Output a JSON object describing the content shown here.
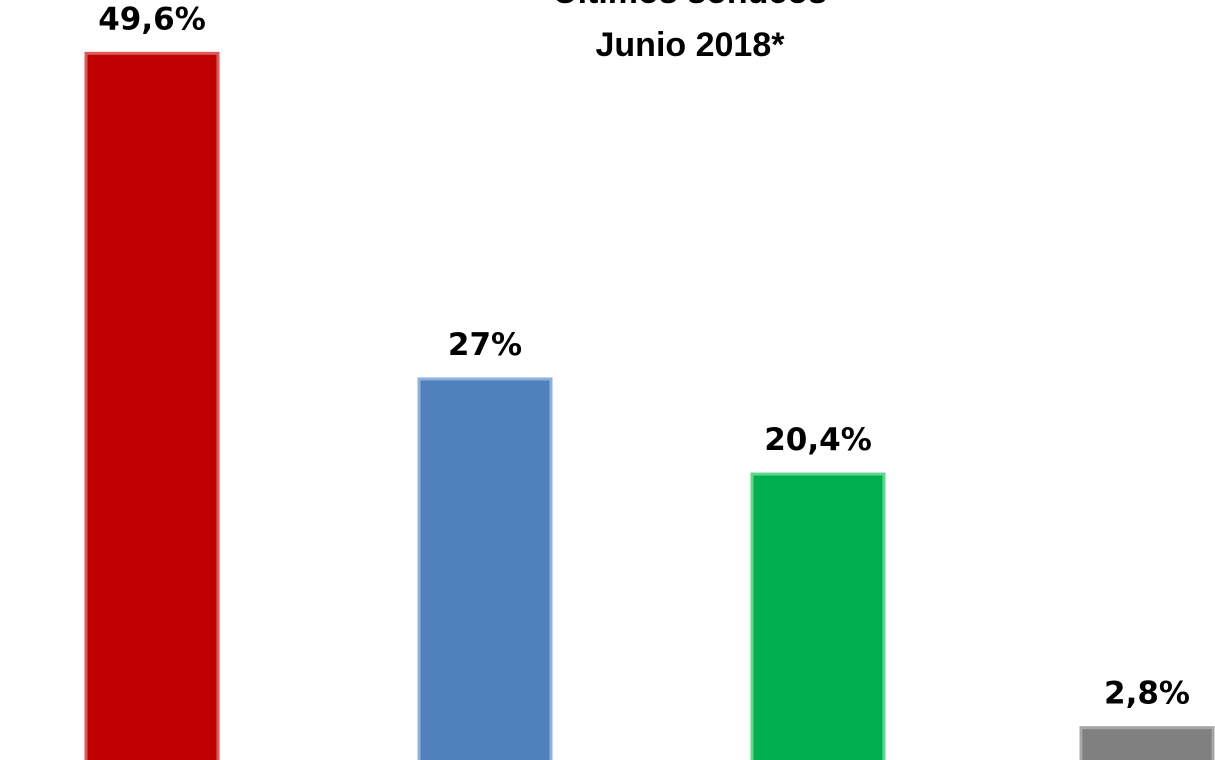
{
  "chart_data": {
    "type": "bar",
    "title_lines": [
      "Últimos sondeos",
      "Junio 2018*"
    ],
    "xlabel": "",
    "ylabel": "",
    "ylim": [
      0,
      53.3
    ],
    "grid": false,
    "legend": "none",
    "values": [
      49.6,
      27,
      20.4,
      2.8
    ],
    "value_labels": [
      "49,6%",
      "27%",
      "20,4%",
      "2,8%"
    ],
    "colors": [
      "#c00000",
      "#4f81bd",
      "#00b050",
      "#808080"
    ],
    "border_colors": [
      "#e05a5a",
      "#8fb2dc",
      "#5fd591",
      "#a6a6a6"
    ]
  }
}
